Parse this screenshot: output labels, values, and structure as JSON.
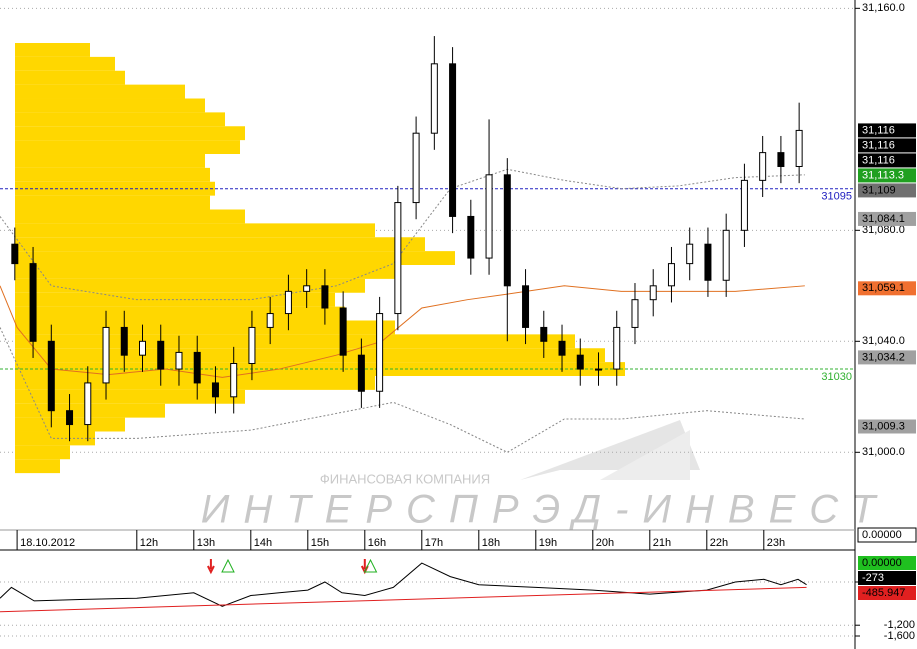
{
  "chart_data": [
    {
      "type": "candlestick",
      "x": [
        9.86,
        10.18,
        10.5,
        10.82,
        11.14,
        11.46,
        11.78,
        12.1,
        12.42,
        12.74,
        13.06,
        13.38,
        13.7,
        14.02,
        14.34,
        14.66,
        14.98,
        15.3,
        15.62,
        15.94,
        16.26,
        16.58,
        16.9,
        17.22,
        17.54,
        17.86,
        18.18,
        18.5,
        18.82,
        19.14,
        19.46,
        19.78,
        20.1,
        20.42,
        20.74,
        21.06,
        21.38,
        21.7,
        22.02,
        22.34,
        22.66,
        22.98,
        23.3,
        23.62
      ],
      "open": [
        31075,
        31068,
        31040,
        31015,
        31010,
        31025,
        31045,
        31035,
        31040,
        31030,
        31036,
        31025,
        31020,
        31032,
        31045,
        31050,
        31058,
        31060,
        31052,
        31035,
        31022,
        31050,
        31090,
        31115,
        31140,
        31085,
        31070,
        31100,
        31060,
        31045,
        31040,
        31035,
        31030,
        31030,
        31045,
        31055,
        31060,
        31068,
        31075,
        31062,
        31080,
        31098,
        31108,
        31103
      ],
      "high": [
        31081,
        31074,
        31046,
        31021,
        31031,
        31051,
        31051,
        31046,
        31046,
        31042,
        31042,
        31031,
        31038,
        31051,
        31056,
        31064,
        31066,
        31066,
        31058,
        31041,
        31056,
        31096,
        31121,
        31150,
        31146,
        31091,
        31120,
        31106,
        31066,
        31051,
        31046,
        31041,
        31036,
        31051,
        31061,
        31066,
        31074,
        31081,
        31081,
        31086,
        31104,
        31114,
        31114,
        31126
      ],
      "low": [
        31062,
        31034,
        31009,
        31004,
        31004,
        31019,
        31029,
        31029,
        31024,
        31024,
        31019,
        31014,
        31014,
        31026,
        31039,
        31044,
        31052,
        31046,
        31029,
        31016,
        31016,
        31044,
        31084,
        31109,
        31079,
        31064,
        31064,
        31040,
        31039,
        31034,
        31029,
        31024,
        31024,
        31024,
        31039,
        31049,
        31054,
        31062,
        31056,
        31056,
        31074,
        31092,
        31097,
        31097
      ],
      "close": [
        31068,
        31040,
        31015,
        31010,
        31025,
        31045,
        31035,
        31040,
        31030,
        31036,
        31025,
        31020,
        31032,
        31045,
        31050,
        31058,
        31060,
        31052,
        31035,
        31022,
        31050,
        31090,
        31115,
        31140,
        31085,
        31070,
        31100,
        31060,
        31045,
        31040,
        31035,
        31030,
        31030,
        31045,
        31055,
        31060,
        31068,
        31075,
        31062,
        31080,
        31098,
        31108,
        31103,
        31116
      ],
      "up_color": "#ffffff",
      "down_color": "#000000",
      "xlim": [
        9.6,
        24.6
      ],
      "xticks": [
        {
          "value": 9.9,
          "label": "18.10.2012"
        },
        {
          "value": 12,
          "label": "12h"
        },
        {
          "value": 13,
          "label": "13h"
        },
        {
          "value": 14,
          "label": "14h"
        },
        {
          "value": 15,
          "label": "15h"
        },
        {
          "value": 16,
          "label": "16h"
        },
        {
          "value": 17,
          "label": "17h"
        },
        {
          "value": 18,
          "label": "18h"
        },
        {
          "value": 19,
          "label": "19h"
        },
        {
          "value": 20,
          "label": "20h"
        },
        {
          "value": 21,
          "label": "21h"
        },
        {
          "value": 22,
          "label": "22h"
        },
        {
          "value": 23,
          "label": "23h"
        }
      ],
      "ylim": [
        30972,
        31163
      ],
      "yticks": [
        {
          "value": 31160,
          "label": "31,160.0"
        },
        {
          "value": 31080,
          "label": "31,080.0"
        },
        {
          "value": 31040,
          "label": "31,040.0"
        },
        {
          "value": 31000,
          "label": "31,000.0"
        }
      ],
      "grid": true,
      "profile": {
        "color": "#ffd700",
        "xlim": [
          0,
          840
        ],
        "levels": [
          31145,
          31140,
          31135,
          31130,
          31125,
          31120,
          31115,
          31110,
          31105,
          31100,
          31095,
          31090,
          31085,
          31080,
          31075,
          31070,
          31065,
          31060,
          31055,
          31050,
          31045,
          31040,
          31035,
          31030,
          31025,
          31020,
          31015,
          31010,
          31005,
          31000,
          30995
        ],
        "volumes": [
          75,
          100,
          110,
          170,
          190,
          210,
          230,
          225,
          190,
          195,
          200,
          195,
          230,
          360,
          410,
          440,
          380,
          350,
          320,
          330,
          380,
          560,
          590,
          610,
          360,
          230,
          150,
          110,
          80,
          55,
          45
        ]
      },
      "lines": [
        {
          "color": "#e07020",
          "dash": "solid",
          "x": [
            9.6,
            9.9,
            10.5,
            11.5,
            12.5,
            13.5,
            14.5,
            15.5,
            16.3,
            17,
            17.8,
            18.5,
            19.5,
            20.5,
            21.5,
            22.5,
            23.72
          ],
          "values": [
            31060,
            31045,
            31030,
            31028,
            31030,
            31027,
            31030,
            31035,
            31040,
            31052,
            31055,
            31057,
            31060,
            31058,
            31058,
            31058,
            31060
          ]
        },
        {
          "color": "#888888",
          "dash": "dotted",
          "x": [
            9.6,
            10.5,
            12,
            14,
            15.5,
            16.5,
            17.5,
            18.5,
            19.5,
            20.5,
            21.5,
            22.5,
            23.72
          ],
          "values": [
            31085,
            31060,
            31055,
            31055,
            31060,
            31068,
            31095,
            31102,
            31098,
            31095,
            31096,
            31099,
            31100
          ]
        },
        {
          "color": "#888888",
          "dash": "dotted",
          "x": [
            9.6,
            10.5,
            12,
            14,
            16.5,
            17.5,
            18.5,
            19.5,
            20.5,
            22,
            23.72
          ],
          "values": [
            31045,
            31005,
            31005,
            31008,
            31018,
            31010,
            31000,
            31012,
            31012,
            31015,
            31012
          ]
        }
      ],
      "levels": [
        {
          "value": 31095,
          "color": "#2020c0"
        },
        {
          "value": 31030,
          "color": "#30b030"
        }
      ],
      "price_labels": [
        {
          "value": 31116,
          "label": "31,116",
          "color": "#000000",
          "text_color": "#ffffff"
        },
        {
          "value": 31116,
          "label": "31,116",
          "color": "#000000",
          "text_color": "#ffffff"
        },
        {
          "value": 31116,
          "label": "31,116",
          "color": "#000000",
          "text_color": "#ffffff"
        },
        {
          "value": 31113.3,
          "label": "31,113.3",
          "color": "#20a020",
          "text_color": "#ffffff"
        },
        {
          "value": 31109,
          "label": "31,109",
          "color": "#707070",
          "text_color": "#000000"
        },
        {
          "value": 31084.1,
          "label": "31,084.1",
          "color": "#a0a0a0",
          "text_color": "#000000"
        },
        {
          "value": 31059.1,
          "label": "31,059.1",
          "color": "#f07030",
          "text_color": "#000000"
        },
        {
          "value": 31034.2,
          "label": "31,034.2",
          "color": "#a0a0a0",
          "text_color": "#000000"
        },
        {
          "value": 31009.3,
          "label": "31,009.3",
          "color": "#a0a0a0",
          "text_color": "#000000"
        }
      ],
      "volume_label": {
        "value": 0,
        "label": "0.00000"
      },
      "watermark": {
        "line1": "ФИНАНСОВАЯ КОМПАНИЯ",
        "line2": "ИНТЕРСПРЭД-ИНВЕСТ"
      }
    },
    {
      "type": "line",
      "xlim": [
        9.6,
        24.6
      ],
      "ylim": [
        -2081,
        1511
      ],
      "yticks": [
        400,
        {
          "value": -1200,
          "label": "-1,200"
        },
        {
          "value": -1600,
          "label": "-1,600"
        }
      ],
      "series": [
        {
          "color": "#000000",
          "x": [
            9.6,
            9.8,
            10.2,
            11,
            12,
            13,
            13.5,
            14,
            14.5,
            15,
            15.3,
            15.6,
            16,
            16.5,
            17,
            17.5,
            18,
            19,
            20,
            21,
            22,
            22.5,
            23,
            23.3,
            23.6,
            23.75
          ],
          "values": [
            -200,
            200,
            -300,
            -250,
            -200,
            0,
            -500,
            -100,
            0,
            100,
            400,
            0,
            -100,
            200,
            1100,
            600,
            300,
            200,
            100,
            -50,
            100,
            400,
            500,
            300,
            500,
            300
          ]
        },
        {
          "color": "#e02020",
          "x": [
            9.6,
            23.75
          ],
          "values": [
            -700,
            200
          ]
        }
      ],
      "signals": [
        {
          "x": 13.3,
          "kind": "sell"
        },
        {
          "x": 13.6,
          "kind": "buy"
        },
        {
          "x": 16.0,
          "kind": "sell"
        },
        {
          "x": 16.1,
          "kind": "buy"
        }
      ],
      "price_labels": [
        {
          "value": 0,
          "label": "0.00000",
          "color": "#20c020",
          "text_color": "#000000"
        },
        {
          "value": -273,
          "label": "-273",
          "color": "#000000",
          "text_color": "#ffffff"
        },
        {
          "value": -485.947,
          "label": "-485.947",
          "color": "#e02020",
          "text_color": "#000000"
        }
      ]
    }
  ]
}
